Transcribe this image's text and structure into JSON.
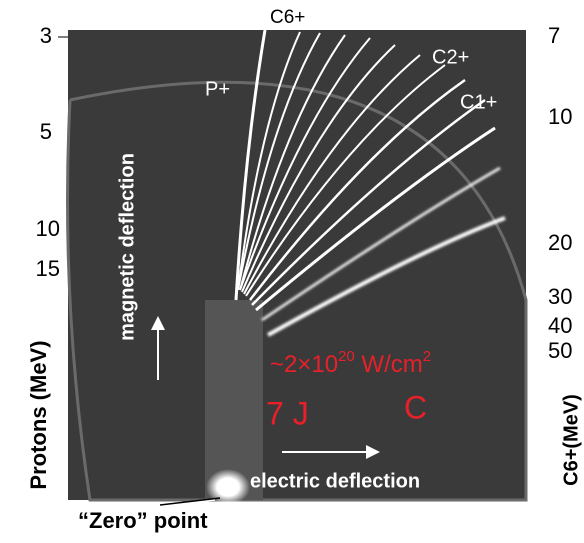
{
  "left_axis": {
    "label": "Protons (MeV)",
    "ticks": [
      "3",
      "5",
      "10",
      "15"
    ]
  },
  "right_axis": {
    "label": "C6+(MeV)",
    "ticks": [
      "7",
      "10",
      "20",
      "30",
      "40",
      "50"
    ]
  },
  "traces": {
    "c6": "C6+",
    "c2": "C2+",
    "c1": "C1+",
    "proton": "P+"
  },
  "annotations": {
    "magnetic": "magnetic deflection",
    "electric": "electric deflection",
    "intensity": {
      "base": "~2×10",
      "exponent": "20",
      "unit": " W/cm",
      "unit_exponent": "2"
    },
    "energy": "7 J",
    "target": "C",
    "zero_point": "“Zero” point"
  }
}
